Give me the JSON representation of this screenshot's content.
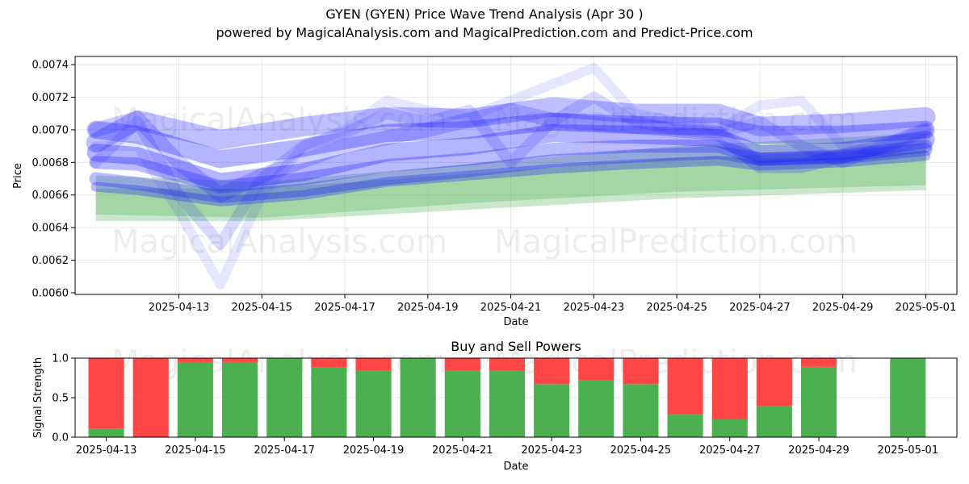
{
  "header": {
    "title": "GYEN (GYEN) Price Wave Trend Analysis (Apr 30 )",
    "subtitle": "powered by MagicalAnalysis.com and MagicalPrediction.com and Predict-Price.com"
  },
  "watermarks": [
    "MagicalAnalysis.com",
    "MagicalPrediction.com"
  ],
  "chart_data": [
    {
      "type": "area",
      "xlabel": "Date",
      "ylabel": "Price",
      "xlim": [
        "2025-04-10T12:00",
        "2025-05-01T18:00"
      ],
      "ylim": [
        0.00599,
        0.00745
      ],
      "grid": true,
      "x_ticks": [
        "2025-04-13",
        "2025-04-15",
        "2025-04-17",
        "2025-04-19",
        "2025-04-21",
        "2025-04-23",
        "2025-04-25",
        "2025-04-27",
        "2025-04-29",
        "2025-05-01"
      ],
      "y_ticks": [
        0.006,
        0.0062,
        0.0064,
        0.0066,
        0.0068,
        0.007,
        0.0072,
        0.0074
      ],
      "y_tick_labels": [
        "0.0060",
        "0.0062",
        "0.0064",
        "0.0066",
        "0.0068",
        "0.0070",
        "0.0072",
        "0.0074"
      ],
      "colors": {
        "green_band": "#4caf50",
        "blue_band": "#1a1aff",
        "grid": "#b0b0b0"
      },
      "green_bands": [
        {
          "x": [
            "2025-04-11",
            "2025-04-15",
            "2025-04-20",
            "2025-04-25",
            "2025-05-01"
          ],
          "lower": [
            0.00644,
            0.00644,
            0.00651,
            0.00658,
            0.00663
          ],
          "upper": [
            0.00672,
            0.00668,
            0.00679,
            0.0069,
            0.00698
          ]
        },
        {
          "x": [
            "2025-04-11",
            "2025-04-15",
            "2025-04-20",
            "2025-04-25",
            "2025-05-01"
          ],
          "lower": [
            0.00648,
            0.00646,
            0.00655,
            0.00662,
            0.00666
          ],
          "upper": [
            0.00664,
            0.00664,
            0.00673,
            0.00683,
            0.00688
          ]
        }
      ],
      "blue_bands": [
        {
          "x": [
            "2025-04-11",
            "2025-04-12",
            "2025-04-14",
            "2025-04-16",
            "2025-04-18",
            "2025-04-20",
            "2025-04-22",
            "2025-04-24",
            "2025-04-26",
            "2025-04-27",
            "2025-04-29",
            "2025-05-01"
          ],
          "y": [
            0.00692,
            0.00706,
            0.00694,
            0.00702,
            0.00708,
            0.00707,
            0.00714,
            0.0071,
            0.0071,
            0.00702,
            0.00704,
            0.00708
          ],
          "width": 0.00012,
          "opacity": 0.28
        },
        {
          "x": [
            "2025-04-11",
            "2025-04-12",
            "2025-04-14",
            "2025-04-16",
            "2025-04-18",
            "2025-04-20",
            "2025-04-22",
            "2025-04-24",
            "2025-04-26",
            "2025-04-27",
            "2025-04-29",
            "2025-05-01"
          ],
          "y": [
            0.007,
            0.00697,
            0.00682,
            0.00689,
            0.00698,
            0.007,
            0.00705,
            0.00703,
            0.00702,
            0.00697,
            0.00697,
            0.007
          ],
          "width": 0.00011,
          "opacity": 0.33
        },
        {
          "x": [
            "2025-04-11",
            "2025-04-12",
            "2025-04-14",
            "2025-04-16",
            "2025-04-18",
            "2025-04-20",
            "2025-04-22",
            "2025-04-24",
            "2025-04-26",
            "2025-04-27",
            "2025-04-29",
            "2025-05-01"
          ],
          "y": [
            0.00686,
            0.00684,
            0.00668,
            0.00674,
            0.00686,
            0.0069,
            0.00698,
            0.00697,
            0.00695,
            0.00685,
            0.00687,
            0.00694
          ],
          "width": 0.00011,
          "opacity": 0.33
        },
        {
          "x": [
            "2025-04-11",
            "2025-04-12",
            "2025-04-14",
            "2025-04-16",
            "2025-04-18",
            "2025-04-20",
            "2025-04-22",
            "2025-04-24",
            "2025-04-26",
            "2025-04-27",
            "2025-04-29",
            "2025-05-01"
          ],
          "y": [
            0.0068,
            0.00679,
            0.00665,
            0.0067,
            0.00678,
            0.00682,
            0.00688,
            0.0069,
            0.0069,
            0.00682,
            0.00684,
            0.0069
          ],
          "width": 8e-05,
          "opacity": 0.3
        },
        {
          "x": [
            "2025-04-11",
            "2025-04-12",
            "2025-04-14",
            "2025-04-16",
            "2025-04-18",
            "2025-04-20",
            "2025-04-22",
            "2025-04-24",
            "2025-04-26",
            "2025-04-27",
            "2025-04-29",
            "2025-05-01"
          ],
          "y": [
            0.0067,
            0.00667,
            0.00659,
            0.00663,
            0.0067,
            0.00675,
            0.00681,
            0.00684,
            0.00686,
            0.00682,
            0.00683,
            0.00688
          ],
          "width": 8e-05,
          "opacity": 0.3
        },
        {
          "x": [
            "2025-04-11",
            "2025-04-12",
            "2025-04-14",
            "2025-04-16",
            "2025-04-18",
            "2025-04-20",
            "2025-04-22",
            "2025-04-24",
            "2025-04-26",
            "2025-04-27",
            "2025-04-29",
            "2025-05-01"
          ],
          "y": [
            0.00665,
            0.00663,
            0.00656,
            0.0066,
            0.00668,
            0.00672,
            0.00676,
            0.00679,
            0.00681,
            0.00678,
            0.0068,
            0.00684
          ],
          "width": 6e-05,
          "opacity": 0.3
        },
        {
          "x": [
            "2025-04-11",
            "2025-04-12",
            "2025-04-13",
            "2025-04-14",
            "2025-04-15",
            "2025-04-17",
            "2025-04-19",
            "2025-04-21",
            "2025-04-22",
            "2025-04-24",
            "2025-04-26",
            "2025-04-27",
            "2025-04-28",
            "2025-04-30",
            "2025-05-01"
          ],
          "y": [
            0.007,
            0.00707,
            0.0068,
            0.0066,
            0.00672,
            0.0069,
            0.007,
            0.00712,
            0.00706,
            0.00702,
            0.00698,
            0.00678,
            0.00678,
            0.0069,
            0.007
          ],
          "width": 9e-05,
          "opacity": 0.22
        },
        {
          "x": [
            "2025-04-11",
            "2025-04-12",
            "2025-04-13",
            "2025-04-14",
            "2025-04-15",
            "2025-04-16",
            "2025-04-17",
            "2025-04-18",
            "2025-04-19",
            "2025-04-20",
            "2025-04-21",
            "2025-04-22",
            "2025-04-23",
            "2025-04-24",
            "2025-04-25",
            "2025-04-26",
            "2025-04-27",
            "2025-04-28",
            "2025-04-29",
            "2025-04-30",
            "2025-05-01"
          ],
          "y": [
            0.0068,
            0.00705,
            0.0066,
            0.0063,
            0.0067,
            0.0069,
            0.00698,
            0.0071,
            0.00705,
            0.00712,
            0.0068,
            0.00705,
            0.0072,
            0.00705,
            0.007,
            0.00698,
            0.00705,
            0.0069,
            0.0068,
            0.0069,
            0.007
          ],
          "width": 7e-05,
          "opacity": 0.16
        },
        {
          "x": [
            "2025-04-11",
            "2025-04-12",
            "2025-04-13",
            "2025-04-14",
            "2025-04-15",
            "2025-04-16",
            "2025-04-17",
            "2025-04-18",
            "2025-04-19",
            "2025-04-20",
            "2025-04-21",
            "2025-04-22",
            "2025-04-23",
            "2025-04-24",
            "2025-04-25",
            "2025-04-26",
            "2025-04-27",
            "2025-04-28",
            "2025-04-29",
            "2025-04-30",
            "2025-05-01"
          ],
          "y": [
            0.0069,
            0.0069,
            0.0065,
            0.00605,
            0.0066,
            0.0069,
            0.007,
            0.00718,
            0.00712,
            0.00708,
            0.00718,
            0.00728,
            0.00738,
            0.0071,
            0.00705,
            0.007,
            0.00715,
            0.00718,
            0.0069,
            0.00686,
            0.00695
          ],
          "width": 6e-05,
          "opacity": 0.11
        }
      ]
    },
    {
      "type": "bar",
      "title": "Buy and Sell Powers",
      "xlabel": "Date",
      "ylabel": "Signal Strength",
      "ylim": [
        0,
        1.0
      ],
      "grid": true,
      "x_ticks": [
        "2025-04-13",
        "2025-04-15",
        "2025-04-17",
        "2025-04-19",
        "2025-04-21",
        "2025-04-23",
        "2025-04-25",
        "2025-04-27",
        "2025-04-29",
        "2025-05-01"
      ],
      "y_ticks": [
        0.0,
        0.5,
        1.0
      ],
      "y_tick_labels": [
        "0.0",
        "0.5",
        "1.0"
      ],
      "colors": {
        "buy": "#4caf50",
        "sell": "#ff4545"
      },
      "categories": [
        "2025-04-13",
        "2025-04-14",
        "2025-04-15",
        "2025-04-16",
        "2025-04-17",
        "2025-04-18",
        "2025-04-19",
        "2025-04-20",
        "2025-04-21",
        "2025-04-22",
        "2025-04-23",
        "2025-04-24",
        "2025-04-25",
        "2025-04-26",
        "2025-04-27",
        "2025-04-28",
        "2025-04-29",
        "2025-04-30",
        "2025-05-01"
      ],
      "series": [
        {
          "values": [
            0.11,
            0.0,
            0.95,
            0.95,
            1.0,
            0.88,
            0.84,
            1.0,
            0.84,
            0.84,
            0.67,
            0.72,
            0.67,
            0.29,
            0.23,
            0.39,
            0.89,
            null,
            1.0
          ]
        },
        {
          "values": [
            0.89,
            1.0,
            0.05,
            0.05,
            0.0,
            0.12,
            0.16,
            0.0,
            0.16,
            0.16,
            0.33,
            0.28,
            0.33,
            0.71,
            0.77,
            0.61,
            0.11,
            null,
            0.0
          ]
        }
      ]
    }
  ]
}
